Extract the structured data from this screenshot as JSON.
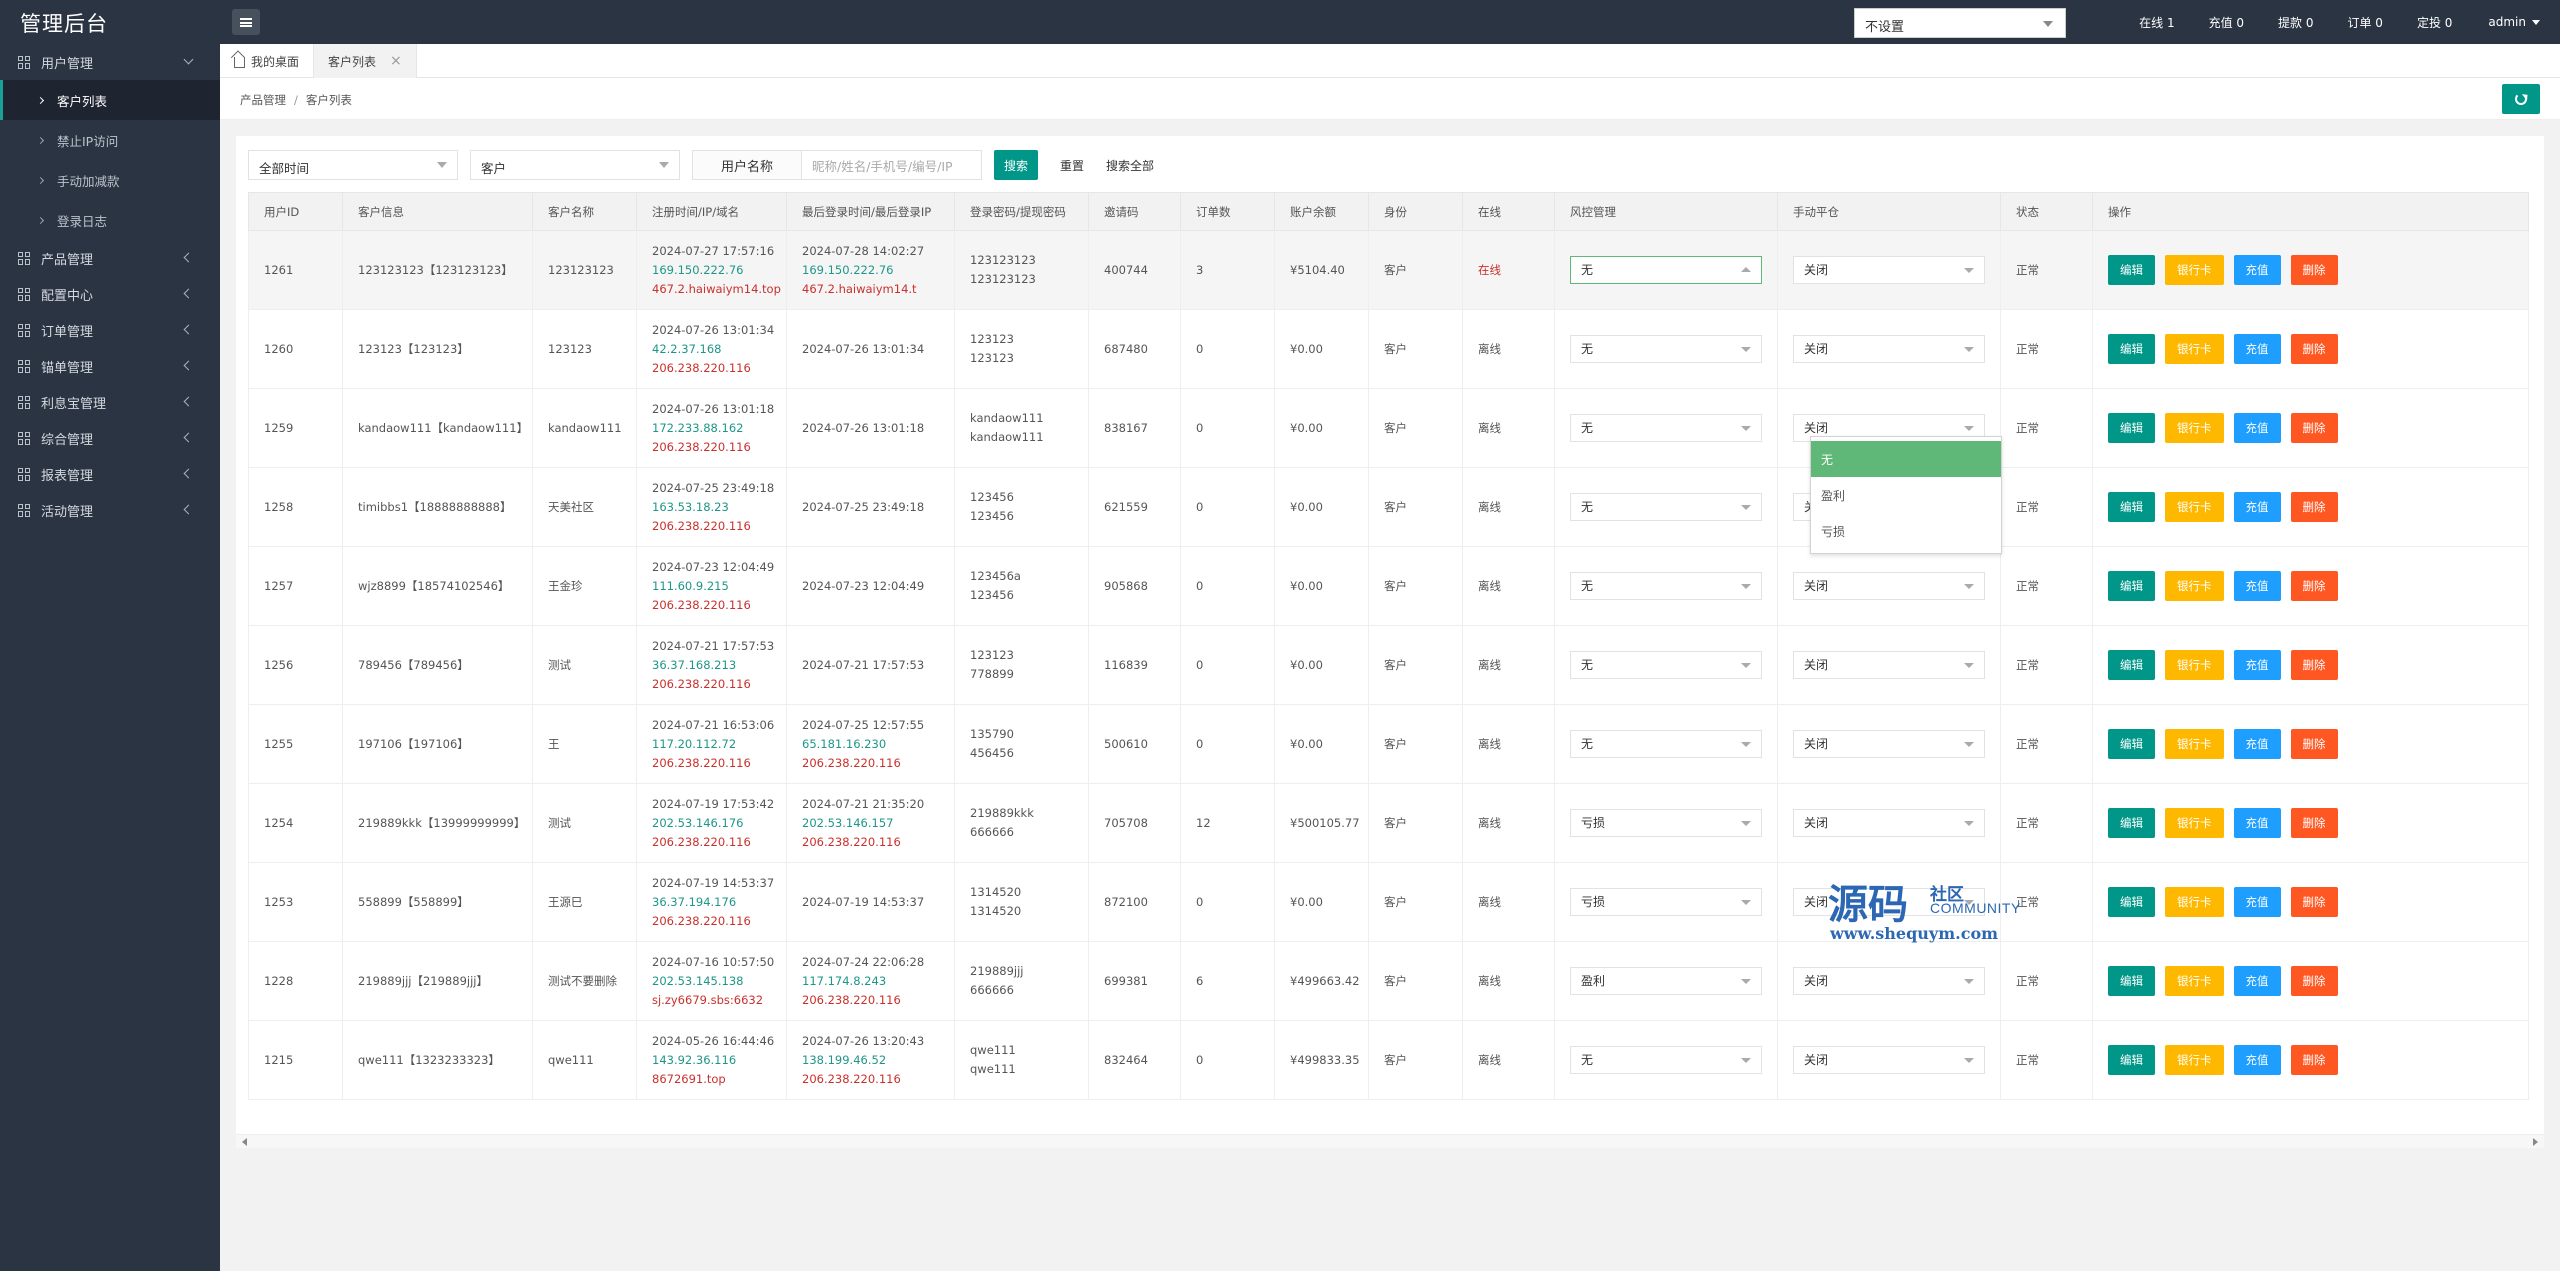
{
  "app": {
    "title": "管理后台"
  },
  "header": {
    "platform_select": "不设置",
    "stats": {
      "online": "在线 1",
      "recharge": "充值 0",
      "withdraw": "提款 0",
      "orders": "订单 0",
      "positions": "定投 0",
      "user": "admin"
    }
  },
  "sidebar": {
    "groups": [
      {
        "label": "用户管理",
        "open": true,
        "items": [
          "客户列表",
          "禁止IP访问",
          "手动加减款",
          "登录日志"
        ],
        "active": "客户列表"
      },
      {
        "label": "产品管理"
      },
      {
        "label": "配置中心"
      },
      {
        "label": "订单管理"
      },
      {
        "label": "锚单管理"
      },
      {
        "label": "利息宝管理"
      },
      {
        "label": "综合管理"
      },
      {
        "label": "报表管理"
      },
      {
        "label": "活动管理"
      }
    ]
  },
  "tabs": [
    {
      "label": "我的桌面"
    },
    {
      "label": "客户列表",
      "active": true
    }
  ],
  "breadcrumb": {
    "parent": "产品管理",
    "sep": "/",
    "current": "客户列表"
  },
  "filters": {
    "time_select": "全部时间",
    "role_select": "客户",
    "search_label": "用户名称",
    "search_placeholder": "昵称/姓名/手机号/编号/IP",
    "search_button": "搜索",
    "reset_button": "重置",
    "search_all_button": "搜索全部"
  },
  "table": {
    "headers": [
      "用户ID",
      "客户信息",
      "客户名称",
      "注册时间/IP/域名",
      "最后登录时间/最后登录IP",
      "登录密码/提现密码",
      "邀请码",
      "订单数",
      "账户余额",
      "身份",
      "在线",
      "风控管理",
      "手动平仓",
      "状态",
      "操作"
    ],
    "actions": {
      "edit": "编辑",
      "bank": "银行卡",
      "charge": "充值",
      "delete": "删除"
    },
    "rows": [
      {
        "id": "1261",
        "info": "123123123【123123123】",
        "name": "123123123",
        "reg_time": "2024-07-27 17:57:16",
        "reg_ip": "169.150.222.76",
        "reg_domain": "467.2.haiwaiym14.top",
        "last_time": "2024-07-28 14:02:27",
        "last_ip": "169.150.222.76",
        "last_domain": "467.2.haiwaiym14.t",
        "pwd": "123123123",
        "pwd2": "123123123",
        "invite": "400744",
        "orders": "3",
        "balance": "¥5104.40",
        "role": "客户",
        "online": "在线",
        "risk": "无",
        "close": "关闭",
        "status": "正常"
      },
      {
        "id": "1260",
        "info": "123123【123123】",
        "name": "123123",
        "reg_time": "2024-07-26 13:01:34",
        "reg_ip": "42.2.37.168",
        "reg_domain": "206.238.220.116",
        "last_time": "2024-07-26 13:01:34",
        "last_ip": "",
        "last_domain": "",
        "pwd": "123123",
        "pwd2": "123123",
        "invite": "687480",
        "orders": "0",
        "balance": "¥0.00",
        "role": "客户",
        "online": "离线",
        "risk": "无",
        "close": "关闭",
        "status": "正常"
      },
      {
        "id": "1259",
        "info": "kandaow111【kandaow111】",
        "name": "kandaow111",
        "reg_time": "2024-07-26 13:01:18",
        "reg_ip": "172.233.88.162",
        "reg_domain": "206.238.220.116",
        "last_time": "2024-07-26 13:01:18",
        "last_ip": "",
        "last_domain": "",
        "pwd": "kandaow111",
        "pwd2": "kandaow111",
        "invite": "838167",
        "orders": "0",
        "balance": "¥0.00",
        "role": "客户",
        "online": "离线",
        "risk": "无",
        "close": "关闭",
        "status": "正常"
      },
      {
        "id": "1258",
        "info": "timibbs1【18888888888】",
        "name": "天美社区",
        "reg_time": "2024-07-25 23:49:18",
        "reg_ip": "163.53.18.23",
        "reg_domain": "206.238.220.116",
        "last_time": "2024-07-25 23:49:18",
        "last_ip": "",
        "last_domain": "",
        "pwd": "123456",
        "pwd2": "123456",
        "invite": "621559",
        "orders": "0",
        "balance": "¥0.00",
        "role": "客户",
        "online": "离线",
        "risk": "无",
        "close": "关闭",
        "status": "正常"
      },
      {
        "id": "1257",
        "info": "wjz8899【18574102546】",
        "name": "王金珍",
        "reg_time": "2024-07-23 12:04:49",
        "reg_ip": "111.60.9.215",
        "reg_domain": "206.238.220.116",
        "last_time": "2024-07-23 12:04:49",
        "last_ip": "",
        "last_domain": "",
        "pwd": "123456a",
        "pwd2": "123456",
        "invite": "905868",
        "orders": "0",
        "balance": "¥0.00",
        "role": "客户",
        "online": "离线",
        "risk": "无",
        "close": "关闭",
        "status": "正常"
      },
      {
        "id": "1256",
        "info": "789456【789456】",
        "name": "测试",
        "reg_time": "2024-07-21 17:57:53",
        "reg_ip": "36.37.168.213",
        "reg_domain": "206.238.220.116",
        "last_time": "2024-07-21 17:57:53",
        "last_ip": "",
        "last_domain": "",
        "pwd": "123123",
        "pwd2": "778899",
        "invite": "116839",
        "orders": "0",
        "balance": "¥0.00",
        "role": "客户",
        "online": "离线",
        "risk": "无",
        "close": "关闭",
        "status": "正常"
      },
      {
        "id": "1255",
        "info": "197106【197106】",
        "name": "王",
        "reg_time": "2024-07-21 16:53:06",
        "reg_ip": "117.20.112.72",
        "reg_domain": "206.238.220.116",
        "last_time": "2024-07-25 12:57:55",
        "last_ip": "65.181.16.230",
        "last_domain": "206.238.220.116",
        "pwd": "135790",
        "pwd2": "456456",
        "invite": "500610",
        "orders": "0",
        "balance": "¥0.00",
        "role": "客户",
        "online": "离线",
        "risk": "无",
        "close": "关闭",
        "status": "正常"
      },
      {
        "id": "1254",
        "info": "219889kkk【13999999999】",
        "name": "测试",
        "reg_time": "2024-07-19 17:53:42",
        "reg_ip": "202.53.146.176",
        "reg_domain": "206.238.220.116",
        "last_time": "2024-07-21 21:35:20",
        "last_ip": "202.53.146.157",
        "last_domain": "206.238.220.116",
        "pwd": "219889kkk",
        "pwd2": "666666",
        "invite": "705708",
        "orders": "12",
        "balance": "¥500105.77",
        "role": "客户",
        "online": "离线",
        "risk": "亏损",
        "close": "关闭",
        "status": "正常"
      },
      {
        "id": "1253",
        "info": "558899【558899】",
        "name": "王源巳",
        "reg_time": "2024-07-19 14:53:37",
        "reg_ip": "36.37.194.176",
        "reg_domain": "206.238.220.116",
        "last_time": "2024-07-19 14:53:37",
        "last_ip": "",
        "last_domain": "",
        "pwd": "1314520",
        "pwd2": "1314520",
        "invite": "872100",
        "orders": "0",
        "balance": "¥0.00",
        "role": "客户",
        "online": "离线",
        "risk": "亏损",
        "close": "关闭",
        "status": "正常"
      },
      {
        "id": "1228",
        "info": "219889jjj【219889jjj】",
        "name": "测试不要删除",
        "reg_time": "2024-07-16 10:57:50",
        "reg_ip": "202.53.145.138",
        "reg_domain": "sj.zy6679.sbs:6632",
        "last_time": "2024-07-24 22:06:28",
        "last_ip": "117.174.8.243",
        "last_domain": "206.238.220.116",
        "pwd": "219889jjj",
        "pwd2": "666666",
        "invite": "699381",
        "orders": "6",
        "balance": "¥499663.42",
        "role": "客户",
        "online": "离线",
        "risk": "盈利",
        "close": "关闭",
        "status": "正常"
      },
      {
        "id": "1215",
        "info": "qwe111【1323233323】",
        "name": "qwe111",
        "reg_time": "2024-05-26 16:44:46",
        "reg_ip": "143.92.36.116",
        "reg_domain": "8672691.top",
        "last_time": "2024-07-26 13:20:43",
        "last_ip": "138.199.46.52",
        "last_domain": "206.238.220.116",
        "pwd": "qwe111",
        "pwd2": "qwe111",
        "invite": "832464",
        "orders": "0",
        "balance": "¥499833.35",
        "role": "客户",
        "online": "离线",
        "risk": "无",
        "close": "关闭",
        "status": "正常"
      }
    ]
  },
  "risk_dropdown": {
    "options": [
      "无",
      "盈利",
      "亏损"
    ],
    "selected": "无"
  },
  "watermark": {
    "big": "源码",
    "small": "社区",
    "community": "COMMUNITY",
    "url": "www.shequym.com"
  },
  "colors": {
    "primary": "#009688",
    "warning": "#ffb800",
    "info": "#1e9fff",
    "danger": "#ff5722",
    "sidebar": "#2b3442",
    "dropdown_active": "#5fb878"
  }
}
